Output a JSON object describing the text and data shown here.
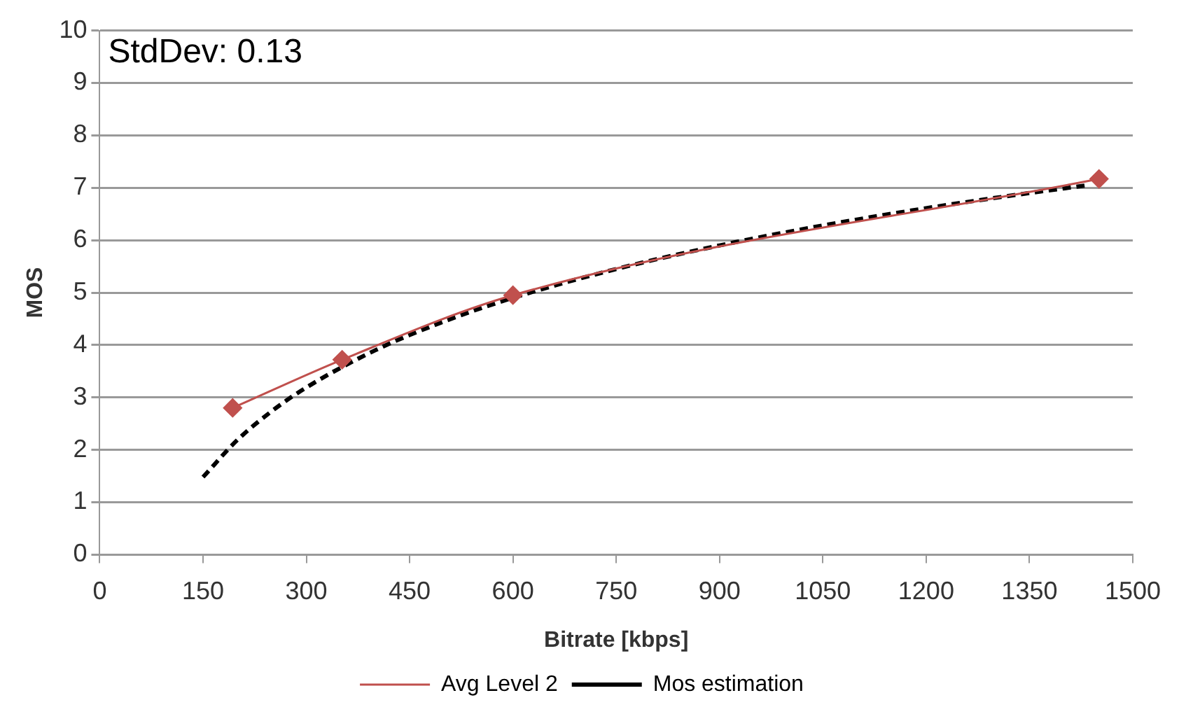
{
  "chart_data": {
    "type": "line",
    "xlabel": "Bitrate [kbps]",
    "ylabel": "MOS",
    "annotations": [
      "StdDev: 0.13"
    ],
    "xlim": [
      0,
      1500
    ],
    "xticks": [
      0,
      150,
      300,
      450,
      600,
      750,
      900,
      1050,
      1200,
      1350,
      1500
    ],
    "ylim": [
      0,
      10
    ],
    "yticks": [
      0,
      1,
      2,
      3,
      4,
      5,
      6,
      7,
      8,
      9,
      10
    ],
    "grid": "y",
    "legend": "bottom",
    "series": [
      {
        "name": "Avg Level 2",
        "color": "#c0504d",
        "marker": "diamond",
        "line_style": "solid",
        "x": [
          193,
          352,
          600,
          1451
        ],
        "values": [
          2.8,
          3.72,
          4.95,
          7.17
        ]
      },
      {
        "name": "Mos estimation",
        "color": "#000000",
        "marker": "none",
        "line_style": "dashed",
        "x": [
          150,
          200,
          250,
          300,
          400,
          500,
          600,
          750,
          900,
          1050,
          1200,
          1350,
          1430
        ],
        "values": [
          1.48,
          2.19,
          2.74,
          3.19,
          3.9,
          4.45,
          4.9,
          5.45,
          5.9,
          6.28,
          6.61,
          6.9,
          7.04
        ]
      }
    ]
  }
}
